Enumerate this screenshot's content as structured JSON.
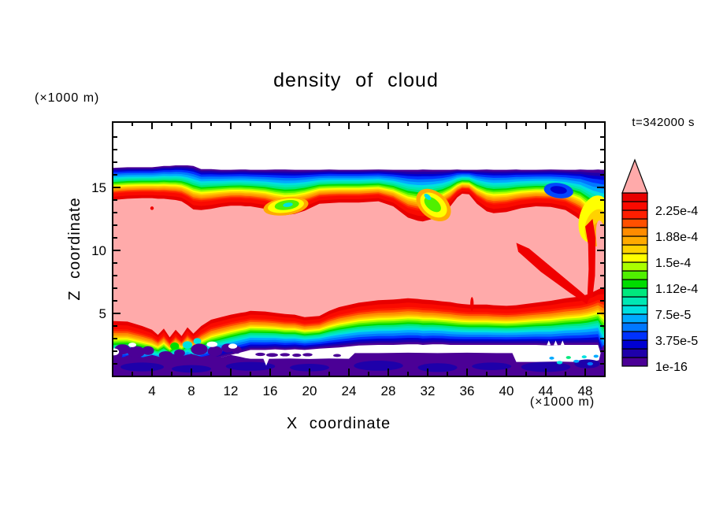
{
  "title": "density of cloud",
  "time_label": "t=342000 s",
  "axes": {
    "x_label": "X coordinate",
    "y_label": "Z coordinate",
    "x_unit": "(×1000 m)",
    "y_unit": "(×1000 m)",
    "x_range": [
      0,
      50
    ],
    "y_range": [
      0,
      20.19
    ],
    "x_major_ticks": [
      4,
      8,
      12,
      16,
      20,
      24,
      28,
      32,
      36,
      40,
      44,
      48
    ],
    "x_minor_ticks": [
      2,
      6,
      10,
      14,
      18,
      22,
      26,
      30,
      34,
      38,
      42,
      46
    ],
    "y_major_ticks": [
      5,
      10,
      15
    ],
    "y_minor_ticks": [
      1,
      2,
      3,
      4,
      6,
      7,
      8,
      9,
      11,
      12,
      13,
      14,
      16,
      17,
      18,
      19
    ]
  },
  "colorbar": {
    "labels_bottom_to_top": [
      "1e-16",
      "3.75e-5",
      "7.5e-5",
      "1.12e-4",
      "1.5e-4",
      "1.88e-4",
      "2.25e-4"
    ],
    "label_every_n_cells": 3,
    "colors_bottom_to_top": [
      "#4b0096",
      "#1e00aa",
      "#0000d2",
      "#0032ff",
      "#0078ff",
      "#00aaff",
      "#00e0e0",
      "#00e8b4",
      "#00e87d",
      "#00dc00",
      "#50f000",
      "#aaff00",
      "#ffff00",
      "#ffd200",
      "#ffaa00",
      "#ff8c00",
      "#ff5000",
      "#ff1e00",
      "#fa0a00",
      "#e80000"
    ],
    "overflow_color": "#ffaaaa"
  },
  "chart_data": {
    "type": "heatmap",
    "subtype": "filled-contour",
    "title": "density of cloud",
    "xlabel": "X coordinate (×1000 m)",
    "ylabel": "Z coordinate (×1000 m)",
    "time": "t=342000 s",
    "labeled_levels": [
      "1e-16",
      "3.75e-5",
      "7.5e-5",
      "1.12e-4",
      "1.5e-4",
      "1.88e-4",
      "2.25e-4"
    ],
    "palette_low_to_high": [
      "#4b0096",
      "#1e00aa",
      "#0000d2",
      "#0032ff",
      "#0078ff",
      "#00aaff",
      "#00e0e0",
      "#00e8b4",
      "#00e87d",
      "#00dc00",
      "#50f000",
      "#aaff00",
      "#ffff00",
      "#ffd200",
      "#ffaa00",
      "#ff8c00",
      "#ff5000",
      "#ff1e00",
      "#fa0a00",
      "#e80000"
    ],
    "core_color": "#ffaaaa",
    "boundary_fractions_top": [
      0,
      0.13,
      0.3,
      0.44,
      0.56,
      0.68,
      0.8,
      1
    ],
    "boundary_fractions_bottom": [
      0,
      0.14,
      0.31,
      0.44,
      0.56,
      0.67,
      0.81,
      1
    ],
    "field": {
      "x_stations": [
        0,
        1.5,
        3,
        4,
        4.6,
        5.2,
        5.8,
        6.4,
        7,
        7.6,
        8.2,
        9,
        10,
        11,
        12,
        13,
        13.5,
        14,
        15.5,
        16.5,
        17.5,
        18.5,
        19.5,
        21,
        22,
        23,
        25,
        27,
        28.5,
        30,
        31,
        31.5,
        32.5,
        33.5,
        34.3,
        35,
        35.5,
        36.2,
        37,
        38,
        38.7,
        40,
        41,
        41.5,
        43,
        44.5,
        46,
        47,
        47.5,
        48.2,
        48.8,
        49.3,
        49.7,
        50
      ],
      "top_outer": [
        16.55,
        16.6,
        16.6,
        16.6,
        16.65,
        16.7,
        16.7,
        16.75,
        16.75,
        16.75,
        16.7,
        16.45,
        16.45,
        16.4,
        16.4,
        16.42,
        16.42,
        16.4,
        16.4,
        16.42,
        16.42,
        16.4,
        16.4,
        16.4,
        16.42,
        16.4,
        16.4,
        16.42,
        16.4,
        16.4,
        16.4,
        16.42,
        16.4,
        16.4,
        16.4,
        16.42,
        16.4,
        16.4,
        16.4,
        16.42,
        16.4,
        16.4,
        16.42,
        16.4,
        16.4,
        16.42,
        16.4,
        16.4,
        16.42,
        16.4,
        16.4,
        16.42,
        16.4,
        16.4
      ],
      "top_inner": [
        14.0,
        14.1,
        14.15,
        14.15,
        14.1,
        14.1,
        14.05,
        14.0,
        13.9,
        13.6,
        13.25,
        13.2,
        13.3,
        13.45,
        13.55,
        13.55,
        13.5,
        13.5,
        13.3,
        13.0,
        12.8,
        12.9,
        13.15,
        13.7,
        13.75,
        13.8,
        13.8,
        13.9,
        13.5,
        12.6,
        12.35,
        12.3,
        12.5,
        12.9,
        13.5,
        14.2,
        14.5,
        14.45,
        13.7,
        13.1,
        12.95,
        13.05,
        13.25,
        13.35,
        13.5,
        13.45,
        13.2,
        12.7,
        12.4,
        11.6,
        10.9,
        10.5,
        10.2,
        10.1
      ],
      "bot_inner": [
        4.4,
        4.35,
        4.0,
        3.7,
        3.3,
        3.8,
        3.1,
        3.7,
        3.2,
        3.9,
        3.4,
        4.0,
        4.5,
        4.7,
        4.9,
        5.05,
        5.1,
        5.2,
        5.15,
        5.05,
        4.95,
        4.9,
        4.7,
        4.8,
        5.2,
        5.5,
        5.85,
        6.05,
        6.1,
        6.2,
        6.15,
        6.1,
        6.05,
        5.95,
        5.9,
        5.8,
        5.75,
        5.7,
        5.7,
        5.7,
        5.65,
        5.6,
        5.65,
        5.7,
        5.85,
        6.0,
        6.2,
        6.3,
        6.35,
        6.5,
        6.7,
        6.9,
        7.05,
        7.1
      ],
      "bot_outer": [
        1.0,
        1.1,
        0.95,
        0.9,
        0.95,
        1.0,
        0.95,
        1.1,
        1.05,
        1.1,
        1.0,
        1.1,
        1.3,
        1.5,
        1.7,
        1.9,
        2.0,
        2.1,
        2.1,
        2.15,
        2.1,
        2.15,
        2.1,
        2.2,
        2.25,
        2.3,
        2.45,
        2.5,
        2.5,
        2.55,
        2.55,
        2.5,
        2.55,
        2.55,
        2.5,
        2.5,
        2.5,
        2.5,
        2.5,
        2.5,
        2.5,
        2.5,
        2.5,
        2.5,
        2.5,
        2.45,
        2.5,
        2.5,
        2.5,
        2.5,
        2.5,
        2.5,
        1.5,
        1.0
      ]
    },
    "overlays": [
      {
        "shape": "ellipse",
        "color": "#ffaa00",
        "cx": 17.6,
        "cz": 13.5,
        "rx": 2.3,
        "rz": 0.7,
        "rot": -8
      },
      {
        "shape": "ellipse",
        "color": "#ffff00",
        "cx": 17.6,
        "cz": 13.55,
        "rx": 1.85,
        "rz": 0.55,
        "rot": -8
      },
      {
        "shape": "ellipse",
        "color": "#50f000",
        "cx": 17.7,
        "cz": 13.6,
        "rx": 1.25,
        "rz": 0.38,
        "rot": -8
      },
      {
        "shape": "ellipse",
        "color": "#00e0e0",
        "cx": 17.8,
        "cz": 13.62,
        "rx": 0.5,
        "rz": 0.17,
        "rot": -8
      },
      {
        "shape": "ellipse",
        "color": "#ffaa00",
        "cx": 32.6,
        "cz": 13.6,
        "rx": 2.0,
        "rz": 1.05,
        "rot": 40
      },
      {
        "shape": "ellipse",
        "color": "#ffff00",
        "cx": 32.6,
        "cz": 13.6,
        "rx": 1.55,
        "rz": 0.8,
        "rot": 40
      },
      {
        "shape": "ellipse",
        "color": "#50f000",
        "cx": 32.5,
        "cz": 13.65,
        "rx": 1.0,
        "rz": 0.45,
        "rot": 40
      },
      {
        "shape": "ellipse",
        "color": "#00e0e0",
        "cx": 32.0,
        "cz": 14.25,
        "rx": 0.42,
        "rz": 0.18,
        "rot": 40
      },
      {
        "shape": "ellipse",
        "color": "#0046ff",
        "cx": 45.3,
        "cz": 14.75,
        "rx": 1.5,
        "rz": 0.6,
        "rot": 8
      },
      {
        "shape": "ellipse",
        "color": "#0000d2",
        "cx": 45.3,
        "cz": 14.8,
        "rx": 0.85,
        "rz": 0.3,
        "rot": 8
      },
      {
        "shape": "ellipse",
        "color": "#ffff00",
        "cx": 48.9,
        "cz": 12.5,
        "rx": 1.5,
        "rz": 1.9,
        "rot": 15
      },
      {
        "shape": "ellipse",
        "color": "#ffd200",
        "cx": 49.1,
        "cz": 11.9,
        "rx": 1.1,
        "rz": 1.4,
        "rot": 15
      },
      {
        "shape": "ellipse",
        "color": "#ffaa00",
        "cx": 49.3,
        "cz": 11.3,
        "rx": 0.8,
        "rz": 1.0,
        "rot": 15
      },
      {
        "shape": "polygon",
        "color": "#f00000",
        "points": [
          [
            41.0,
            10.6
          ],
          [
            42.3,
            10.15
          ],
          [
            47.6,
            6.7
          ],
          [
            48.4,
            6.15
          ],
          [
            48.15,
            5.75
          ],
          [
            46.5,
            6.6
          ],
          [
            43.5,
            8.3
          ],
          [
            41.2,
            9.9
          ]
        ]
      },
      {
        "shape": "polygon",
        "color": "#f00000",
        "points": [
          [
            48.0,
            11.9
          ],
          [
            48.75,
            12.5
          ],
          [
            49.05,
            11.0
          ],
          [
            49.0,
            8.0
          ],
          [
            48.75,
            6.3
          ],
          [
            48.2,
            6.1
          ],
          [
            48.35,
            8.5
          ],
          [
            48.3,
            10.5
          ]
        ]
      },
      {
        "shape": "ellipse",
        "color": "#ffaaaa",
        "cx": 49.8,
        "cz": 10.3,
        "rx": 0.6,
        "rz": 2.1,
        "rot": -8
      },
      {
        "shape": "ellipse",
        "color": "#f00000",
        "cx": 4.0,
        "cz": 13.35,
        "rx": 0.18,
        "rz": 0.14,
        "rot": 0
      },
      {
        "shape": "ellipse",
        "color": "#f00000",
        "cx": 36.5,
        "cz": 5.75,
        "rx": 0.17,
        "rz": 0.55,
        "rot": 0
      },
      {
        "shape": "ellipse",
        "color": "#00e0e0",
        "cx": 7.6,
        "cz": 2.5,
        "rx": 0.5,
        "rz": 0.3,
        "rot": 0
      },
      {
        "shape": "ellipse",
        "color": "#00e0e0",
        "cx": 8.6,
        "cz": 2.8,
        "rx": 0.4,
        "rz": 0.25,
        "rot": 0
      },
      {
        "shape": "ellipse",
        "color": "#00dc00",
        "cx": 6.3,
        "cz": 2.4,
        "rx": 0.45,
        "rz": 0.3,
        "rot": 0
      }
    ],
    "bottom_strip": {
      "color": "#4b0096",
      "top_edge": [
        [
          0,
          1.7
        ],
        [
          1,
          1.5
        ],
        [
          2,
          1.8
        ],
        [
          3,
          1.5
        ],
        [
          4,
          1.7
        ],
        [
          5,
          1.5
        ],
        [
          6,
          1.8
        ],
        [
          7,
          1.6
        ],
        [
          8,
          1.8
        ],
        [
          9,
          1.55
        ],
        [
          10,
          1.7
        ],
        [
          11,
          1.5
        ],
        [
          12,
          1.7
        ],
        [
          13,
          1.55
        ],
        [
          13.5,
          1.45
        ],
        [
          14,
          1.4
        ],
        [
          16,
          1.4
        ],
        [
          18,
          1.42
        ],
        [
          20,
          1.38
        ],
        [
          22,
          1.42
        ],
        [
          24,
          1.4
        ],
        [
          24.6,
          1.85
        ],
        [
          27,
          1.85
        ],
        [
          30,
          1.88
        ],
        [
          33,
          1.85
        ],
        [
          36,
          1.88
        ],
        [
          39,
          1.85
        ],
        [
          40.6,
          1.85
        ],
        [
          41,
          1.15
        ],
        [
          43,
          1.15
        ],
        [
          45,
          1.18
        ],
        [
          47,
          1.15
        ],
        [
          49,
          1.2
        ],
        [
          49.4,
          1.3
        ],
        [
          49.7,
          2.3
        ],
        [
          50,
          2.6
        ]
      ],
      "navy_blobs": [
        [
          3,
          0.75,
          2.2,
          0.35
        ],
        [
          8,
          0.6,
          2.0,
          0.3
        ],
        [
          14,
          0.8,
          2.5,
          0.35
        ],
        [
          20,
          0.7,
          2.0,
          0.3
        ],
        [
          27,
          0.85,
          2.5,
          0.4
        ],
        [
          33,
          0.7,
          2.0,
          0.35
        ],
        [
          38.5,
          0.8,
          2.0,
          0.3
        ],
        [
          44,
          0.75,
          2.5,
          0.4
        ],
        [
          48.2,
          1.0,
          1.3,
          0.35
        ]
      ],
      "navy_color": "#1e00aa",
      "cyan_specks": [
        [
          44.6,
          1.45,
          0.25,
          0.12,
          "#00aaff"
        ],
        [
          45.4,
          1.1,
          0.3,
          0.13,
          "#00e0e0"
        ],
        [
          46.3,
          1.5,
          0.25,
          0.12,
          "#00e87d"
        ],
        [
          47.1,
          1.2,
          0.3,
          0.12,
          "#00aaff"
        ],
        [
          47.9,
          1.55,
          0.25,
          0.12,
          "#00e0e0"
        ],
        [
          48.5,
          1.0,
          0.3,
          0.13,
          "#0078ff"
        ],
        [
          49.1,
          1.6,
          0.25,
          0.12,
          "#00aaff"
        ]
      ],
      "white_notch": [
        [
          15.3,
          1.42
        ],
        [
          15.9,
          1.42
        ],
        [
          15.6,
          0.85
        ]
      ]
    },
    "speckles": {
      "purple_color": "#4b0096",
      "purple_blobs": [
        [
          1,
          2.15,
          0.8,
          0.4
        ],
        [
          2.4,
          1.95,
          0.9,
          0.45
        ],
        [
          3.6,
          2.05,
          0.6,
          0.35
        ],
        [
          5.4,
          1.7,
          0.7,
          0.3
        ],
        [
          6.8,
          1.85,
          0.55,
          0.3
        ],
        [
          8.8,
          2.15,
          0.85,
          0.45
        ],
        [
          10.4,
          2.0,
          0.75,
          0.4
        ],
        [
          11.7,
          2.25,
          0.65,
          0.35
        ],
        [
          0.5,
          1.7,
          0.5,
          0.3
        ],
        [
          12.6,
          2.1,
          0.5,
          0.3
        ]
      ],
      "white_holes": [
        [
          0.15,
          1.95,
          0.5,
          0.28
        ],
        [
          10.1,
          2.55,
          0.55,
          0.22
        ],
        [
          12.2,
          2.4,
          0.45,
          0.2
        ],
        [
          2.0,
          2.5,
          0.4,
          0.18
        ]
      ],
      "gap_islands": [
        [
          15,
          1.75,
          0.5,
          0.13
        ],
        [
          16.2,
          1.7,
          0.6,
          0.15
        ],
        [
          17.5,
          1.72,
          0.5,
          0.13
        ],
        [
          18.7,
          1.68,
          0.45,
          0.13
        ],
        [
          19.8,
          1.72,
          0.5,
          0.13
        ],
        [
          22.8,
          1.66,
          0.4,
          0.12
        ]
      ],
      "white_teeth_x": [
        44.3,
        45.0,
        45.7
      ]
    }
  }
}
